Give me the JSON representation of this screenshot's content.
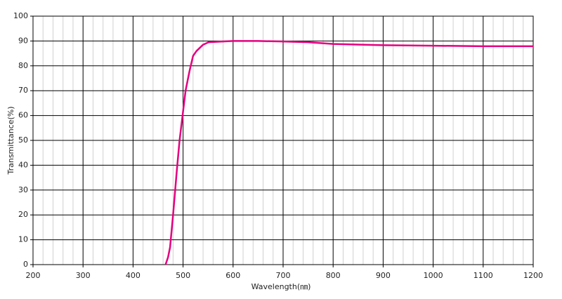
{
  "chart_data": {
    "type": "line",
    "x_label": "Wavelength(㎚)",
    "y_label": "Transmittance(%)",
    "x": [
      465,
      470,
      474,
      480,
      488,
      493,
      499,
      505,
      513,
      520,
      527,
      540,
      551,
      600,
      650,
      700,
      750,
      800,
      900,
      1000,
      1100,
      1200
    ],
    "series": [
      {
        "color": "#e4007f",
        "values": [
          0,
          3,
          7,
          20,
          39,
          50,
          60,
          70,
          78,
          84,
          86,
          88.5,
          89.5,
          90,
          90,
          89.8,
          89.5,
          88.8,
          88.3,
          88.1,
          87.9,
          87.9
        ]
      }
    ],
    "xlim": [
      200,
      1200
    ],
    "ylim": [
      0,
      100
    ],
    "xticks": [
      200,
      300,
      400,
      500,
      600,
      700,
      800,
      900,
      1000,
      1100,
      1200
    ],
    "yticks": [
      0,
      10,
      20,
      30,
      40,
      50,
      60,
      70,
      80,
      90,
      100
    ],
    "grid": true
  }
}
